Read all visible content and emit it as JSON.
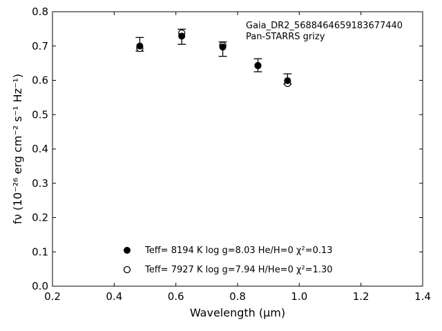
{
  "chart_data": {
    "type": "scatter",
    "xlabel": "Wavelength (μm)",
    "ylabel": "fν (10⁻²⁶ erg cm⁻² s⁻¹ Hz⁻¹)",
    "xlim": [
      0.2,
      1.4
    ],
    "ylim": [
      0.0,
      0.8
    ],
    "xticks": [
      "0.2",
      "0.4",
      "0.6",
      "0.8",
      "1.0",
      "1.2",
      "1.4"
    ],
    "yticks": [
      "0.0",
      "0.1",
      "0.2",
      "0.3",
      "0.4",
      "0.5",
      "0.6",
      "0.7",
      "0.8"
    ],
    "annotations": [
      "Gaia_DR2_5688464659183677440",
      "Pan-STARRS grizy"
    ],
    "grid": false,
    "legend_position": "bottom-center",
    "series": [
      {
        "name": "Teff= 8194 K  log g=8.03  He/H=0  χ²=0.13",
        "marker": "filled-circle",
        "color": "#000000",
        "x": [
          0.483,
          0.619,
          0.752,
          0.866,
          0.962
        ],
        "y": [
          0.7,
          0.729,
          0.697,
          0.643,
          0.599
        ]
      },
      {
        "name": "Teff= 7927 K  log g=7.94  H/He=0  χ²=1.30",
        "marker": "open-circle",
        "color": "#000000",
        "x": [
          0.483,
          0.619,
          0.752,
          0.866,
          0.962
        ],
        "y": [
          0.693,
          0.738,
          0.702,
          0.643,
          0.591
        ]
      }
    ],
    "observed": {
      "x": [
        0.483,
        0.619,
        0.752,
        0.866,
        0.962
      ],
      "y": [
        0.705,
        0.727,
        0.691,
        0.644,
        0.604
      ],
      "yerr": [
        0.02,
        0.022,
        0.021,
        0.019,
        0.015
      ]
    }
  }
}
